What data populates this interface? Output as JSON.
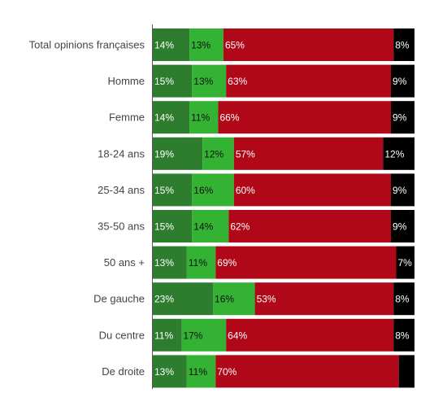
{
  "chart_data": {
    "type": "bar",
    "orientation": "horizontal",
    "stacked": true,
    "categories": [
      "Total opinions françaises",
      "Homme",
      "Femme",
      "18-24 ans",
      "25-34 ans",
      "35-50 ans",
      "50 ans +",
      "De gauche",
      "Du centre",
      "De droite"
    ],
    "series": [
      {
        "values": [
          14,
          15,
          14,
          19,
          15,
          15,
          13,
          23,
          11,
          13
        ],
        "color": "#2e7d2e",
        "label_color": "#ffffff"
      },
      {
        "values": [
          13,
          13,
          11,
          12,
          16,
          14,
          11,
          16,
          17,
          11
        ],
        "color": "#33b233",
        "label_color": "#111111"
      },
      {
        "values": [
          65,
          63,
          66,
          57,
          60,
          62,
          69,
          53,
          64,
          70
        ],
        "color": "#b00818",
        "label_color": "#ffffff"
      },
      {
        "values": [
          8,
          9,
          9,
          12,
          9,
          9,
          7,
          8,
          8,
          null
        ],
        "color": "#000000",
        "label_color": "#ffffff"
      }
    ],
    "value_suffix": "%",
    "xlim": [
      0,
      100
    ],
    "legend": "none",
    "grid": false,
    "title": "",
    "xlabel": "",
    "ylabel": ""
  }
}
